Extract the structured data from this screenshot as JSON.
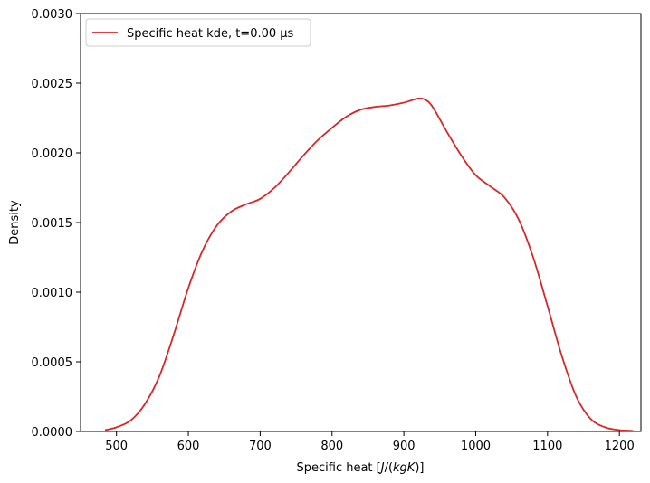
{
  "chart_data": {
    "type": "line",
    "title": "",
    "xlabel": "Specific heat [J/(kgK)]",
    "ylabel": "Density",
    "xlim": [
      450,
      1230
    ],
    "ylim": [
      0,
      0.003
    ],
    "xticks": [
      500,
      600,
      700,
      800,
      900,
      1000,
      1100,
      1200
    ],
    "yticks": [
      0.0,
      0.0005,
      0.001,
      0.0015,
      0.002,
      0.0025,
      0.003
    ],
    "xtick_labels": [
      "500",
      "600",
      "700",
      "800",
      "900",
      "1000",
      "1100",
      "1200"
    ],
    "ytick_labels": [
      "0.0000",
      "0.0005",
      "0.0010",
      "0.0015",
      "0.0020",
      "0.0025",
      "0.0030"
    ],
    "grid": false,
    "legend_position": "top-left",
    "series": [
      {
        "name": "Specific heat kde, t=0.00 μs",
        "color": "#d62728",
        "x": [
          484,
          500,
          520,
          540,
          560,
          580,
          600,
          620,
          640,
          660,
          680,
          700,
          720,
          740,
          760,
          780,
          800,
          820,
          840,
          860,
          880,
          900,
          920,
          930,
          940,
          960,
          980,
          1000,
          1020,
          1040,
          1060,
          1080,
          1100,
          1120,
          1140,
          1160,
          1180,
          1200,
          1219
        ],
        "y": [
          1e-05,
          3e-05,
          8e-05,
          0.0002,
          0.0004,
          0.0007,
          0.00103,
          0.0013,
          0.00148,
          0.00158,
          0.00163,
          0.00167,
          0.00175,
          0.00186,
          0.00198,
          0.00209,
          0.00218,
          0.00226,
          0.00231,
          0.00233,
          0.00234,
          0.00236,
          0.00239,
          0.00238,
          0.00233,
          0.00215,
          0.00198,
          0.00184,
          0.00176,
          0.00168,
          0.00152,
          0.00125,
          0.0009,
          0.00054,
          0.00025,
          9e-05,
          3e-05,
          1e-05,
          5e-06
        ]
      }
    ]
  }
}
